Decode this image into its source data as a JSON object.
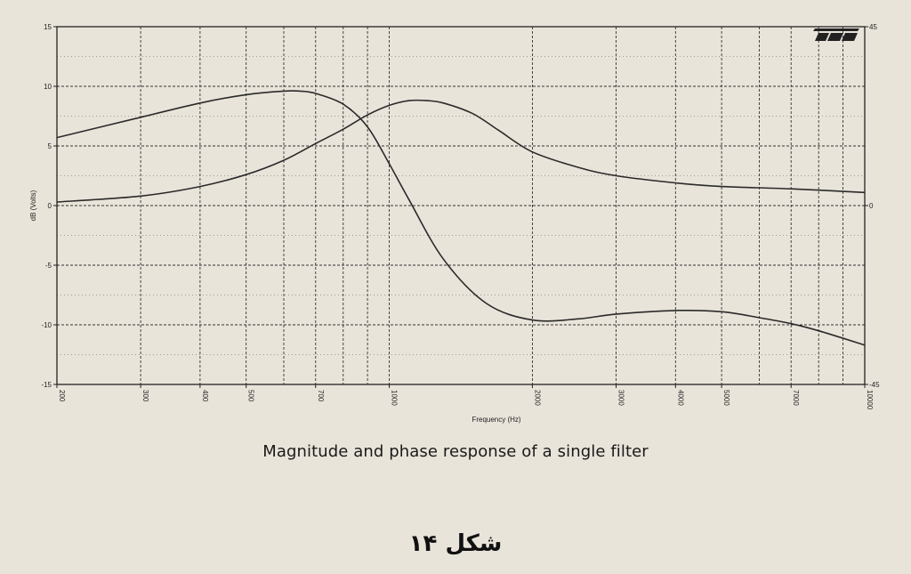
{
  "chart_data": {
    "type": "line",
    "title": "",
    "xlabel": "Frequency (Hz)",
    "ylabel": "dB (Volts)",
    "x_scale": "log",
    "xlim": [
      200,
      10000
    ],
    "ylim": [
      -15,
      15
    ],
    "y2lim": [
      -45,
      45
    ],
    "grid": true,
    "x_ticks": [
      200,
      300,
      400,
      500,
      700,
      1000,
      2000,
      3000,
      4000,
      5000,
      7000,
      10000
    ],
    "x_tick_labels": [
      "200",
      "300",
      "400",
      "500",
      "700",
      "1000",
      "2000",
      "3000",
      "4000",
      "5000",
      "7000",
      "10000"
    ],
    "y_ticks": [
      -15,
      -10,
      -5,
      0,
      5,
      10,
      15
    ],
    "y_tick_labels": [
      "-15",
      "-10",
      "-5",
      "0",
      "5",
      "10",
      "15"
    ],
    "y2_ticks": [
      -45,
      0,
      45
    ],
    "y2_tick_labels": [
      "-45",
      "0",
      "45"
    ],
    "series": [
      {
        "x": [
          200,
          300,
          400,
          500,
          600,
          650,
          700,
          800,
          900,
          1000,
          1100,
          1300,
          1600,
          2000,
          2500,
          3000,
          4000,
          5000,
          6000,
          7000,
          8000,
          10000
        ],
        "y": [
          5.7,
          7.4,
          8.6,
          9.3,
          9.6,
          9.6,
          9.4,
          8.5,
          6.6,
          3.5,
          0.5,
          -4.5,
          -8.2,
          -9.6,
          -9.5,
          -9.1,
          -8.8,
          -8.9,
          -9.4,
          -9.9,
          -10.5,
          -11.7
        ]
      },
      {
        "x": [
          200,
          300,
          400,
          500,
          600,
          700,
          800,
          900,
          1000,
          1100,
          1200,
          1300,
          1500,
          1700,
          2000,
          2500,
          3000,
          4000,
          5000,
          7000,
          10000
        ],
        "y": [
          0.3,
          0.8,
          1.6,
          2.6,
          3.8,
          5.2,
          6.4,
          7.6,
          8.4,
          8.8,
          8.8,
          8.6,
          7.7,
          6.3,
          4.5,
          3.2,
          2.5,
          1.9,
          1.6,
          1.4,
          1.1
        ]
      }
    ]
  },
  "caption": "Magnitude and phase response of a single filter",
  "figure_label": "شکل ۱۴"
}
